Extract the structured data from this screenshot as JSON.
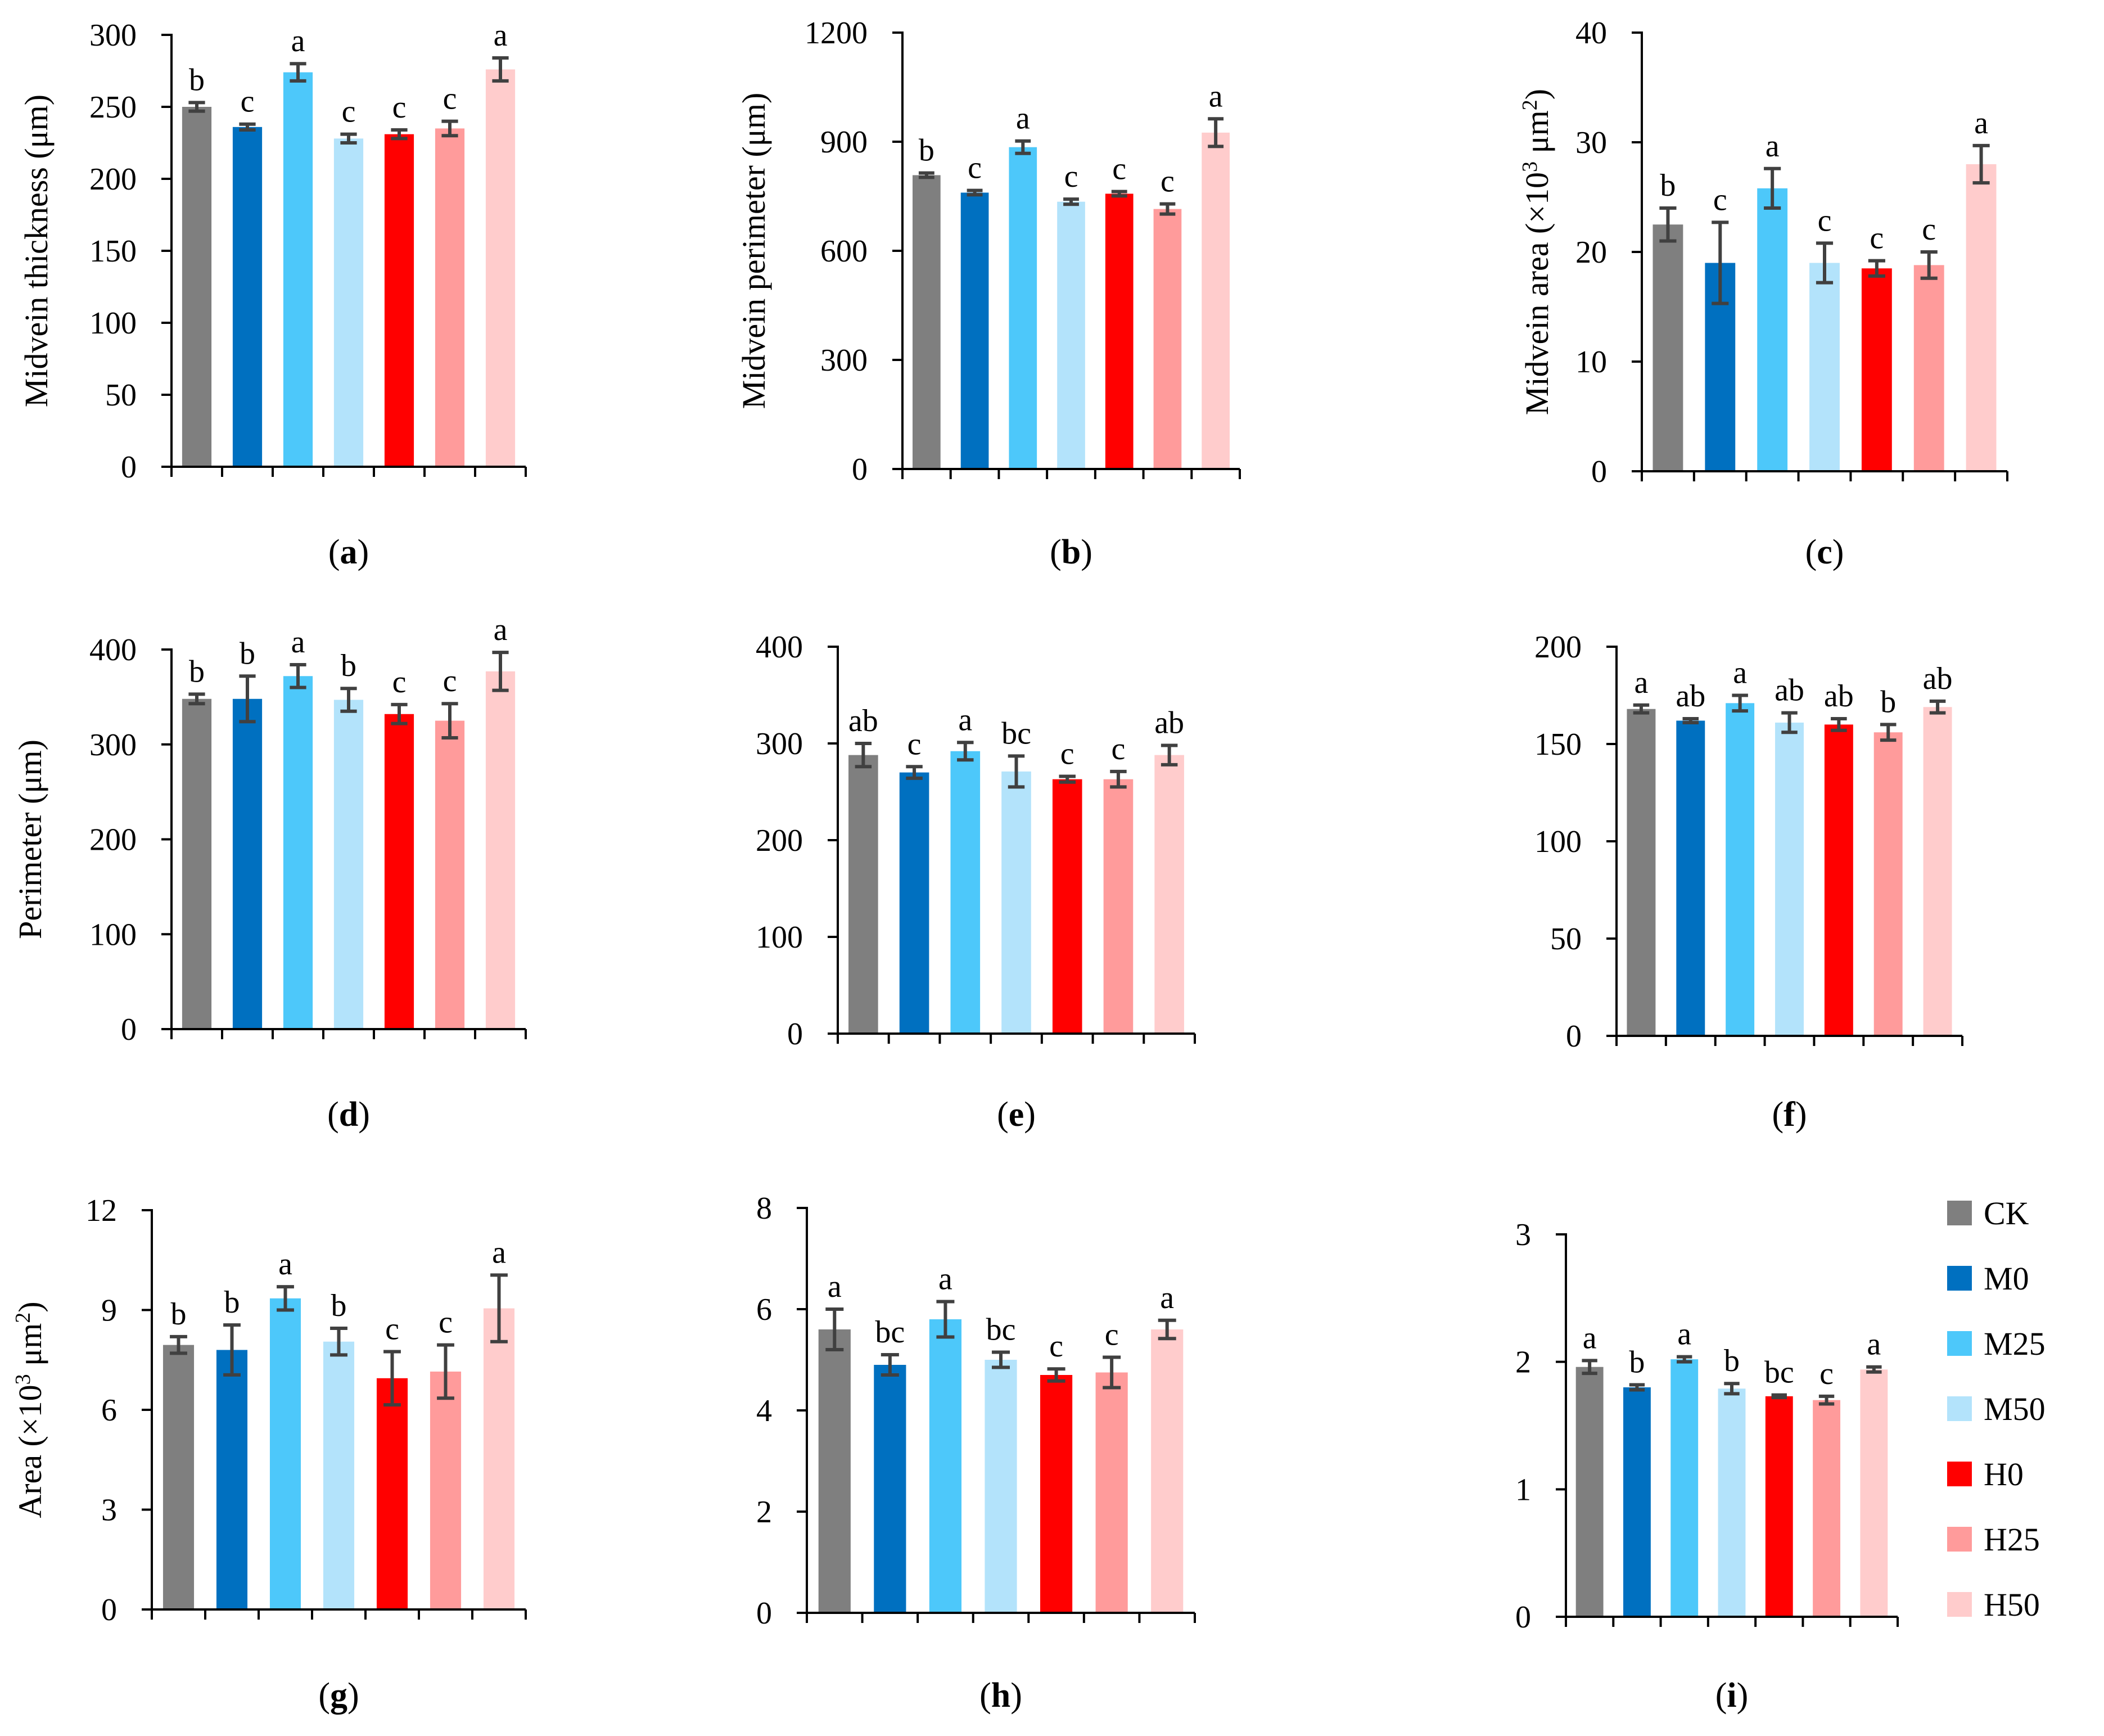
{
  "colors": {
    "CK": "#7f7f7f",
    "M0": "#0070c0",
    "M25": "#4dc8fa",
    "M50": "#b3e3fb",
    "H0": "#ff0000",
    "H25": "#ff9b9b",
    "H50": "#ffcccc",
    "axis": "#000000",
    "error_bar": "#404040"
  },
  "legend": {
    "entries": [
      "CK",
      "M0",
      "M25",
      "M50",
      "H0",
      "H25",
      "H50"
    ]
  },
  "chart_data": [
    {
      "id": "a",
      "panel_label": "a",
      "type": "bar",
      "ylabel": "Midvein thickness (μm)",
      "ylim": [
        0,
        300
      ],
      "yticks": [
        0,
        50,
        100,
        150,
        200,
        250,
        300
      ],
      "categories": [
        "CK",
        "M0",
        "M25",
        "M50",
        "H0",
        "H25",
        "H50"
      ],
      "values": [
        250,
        236,
        274,
        228,
        231,
        235,
        276
      ],
      "errors": [
        3,
        2,
        6,
        3,
        3,
        5,
        8
      ],
      "letters": [
        "b",
        "c",
        "a",
        "c",
        "c",
        "c",
        "a"
      ]
    },
    {
      "id": "b",
      "panel_label": "b",
      "type": "bar",
      "ylabel": "Midvein perimeter (μm)",
      "ylim": [
        0,
        1200
      ],
      "yticks": [
        0,
        300,
        600,
        900,
        1200
      ],
      "categories": [
        "CK",
        "M0",
        "M25",
        "M50",
        "H0",
        "H25",
        "H50"
      ],
      "values": [
        808,
        760,
        885,
        735,
        757,
        715,
        925
      ],
      "errors": [
        6,
        6,
        17,
        7,
        6,
        14,
        38
      ],
      "letters": [
        "b",
        "c",
        "a",
        "c",
        "c",
        "c",
        "a"
      ]
    },
    {
      "id": "c",
      "panel_label": "c",
      "type": "bar",
      "ylabel_parts": [
        "Midvein area (×10",
        "3",
        " μm",
        "2",
        ")"
      ],
      "ylim": [
        0,
        40
      ],
      "yticks": [
        0,
        10,
        20,
        30,
        40
      ],
      "categories": [
        "CK",
        "M0",
        "M25",
        "M50",
        "H0",
        "H25",
        "H50"
      ],
      "values": [
        22.5,
        19.0,
        25.8,
        19.0,
        18.5,
        18.8,
        28.0
      ],
      "errors": [
        1.5,
        3.7,
        1.8,
        1.8,
        0.7,
        1.2,
        1.7
      ],
      "letters": [
        "b",
        "c",
        "a",
        "c",
        "c",
        "c",
        "a"
      ]
    },
    {
      "id": "d",
      "panel_label": "d",
      "type": "bar",
      "ylabel": "Perimeter (μm)",
      "ylim": [
        0,
        400
      ],
      "yticks": [
        0,
        100,
        200,
        300,
        400
      ],
      "categories": [
        "CK",
        "M0",
        "M25",
        "M50",
        "H0",
        "H25",
        "H50"
      ],
      "values": [
        348,
        348,
        372,
        347,
        332,
        325,
        377
      ],
      "errors": [
        5,
        24,
        12,
        12,
        10,
        18,
        20
      ],
      "letters": [
        "b",
        "b",
        "a",
        "b",
        "c",
        "c",
        "a"
      ]
    },
    {
      "id": "e",
      "panel_label": "e",
      "type": "bar",
      "ylabel": "",
      "ylim": [
        0,
        400
      ],
      "yticks": [
        0,
        100,
        200,
        300,
        400
      ],
      "categories": [
        "CK",
        "M0",
        "M25",
        "M50",
        "H0",
        "H25",
        "H50"
      ],
      "values": [
        288,
        270,
        292,
        271,
        263,
        263,
        288
      ],
      "errors": [
        12,
        6,
        9,
        16,
        3,
        8,
        10
      ],
      "letters": [
        "ab",
        "c",
        "a",
        "bc",
        "c",
        "c",
        "ab"
      ]
    },
    {
      "id": "f",
      "panel_label": "f",
      "type": "bar",
      "ylabel": "",
      "ylim": [
        0,
        200
      ],
      "yticks": [
        0,
        50,
        100,
        150,
        200
      ],
      "categories": [
        "CK",
        "M0",
        "M25",
        "M50",
        "H0",
        "H25",
        "H50"
      ],
      "values": [
        168,
        162,
        171,
        161,
        160,
        156,
        169
      ],
      "errors": [
        2,
        1,
        4,
        5,
        3,
        4,
        3
      ],
      "letters": [
        "a",
        "ab",
        "a",
        "ab",
        "ab",
        "b",
        "ab"
      ]
    },
    {
      "id": "g",
      "panel_label": "g",
      "type": "bar",
      "ylabel_parts": [
        "Area (×10",
        "3",
        " μm",
        "2",
        ")"
      ],
      "ylim": [
        0,
        12
      ],
      "yticks": [
        0,
        3,
        6,
        9,
        12
      ],
      "categories": [
        "CK",
        "M0",
        "M25",
        "M50",
        "H0",
        "H25",
        "H50"
      ],
      "values": [
        7.95,
        7.8,
        9.35,
        8.05,
        6.95,
        7.15,
        9.05
      ],
      "errors": [
        0.25,
        0.75,
        0.35,
        0.4,
        0.8,
        0.8,
        1.0
      ],
      "letters": [
        "b",
        "b",
        "a",
        "b",
        "c",
        "c",
        "a"
      ]
    },
    {
      "id": "h",
      "panel_label": "h",
      "type": "bar",
      "ylabel": "",
      "ylim": [
        0,
        8
      ],
      "yticks": [
        0,
        2,
        4,
        6,
        8
      ],
      "categories": [
        "CK",
        "M0",
        "M25",
        "M50",
        "H0",
        "H25",
        "H50"
      ],
      "values": [
        5.6,
        4.9,
        5.8,
        5.0,
        4.7,
        4.75,
        5.6
      ],
      "errors": [
        0.4,
        0.2,
        0.35,
        0.15,
        0.12,
        0.3,
        0.18
      ],
      "letters": [
        "a",
        "bc",
        "a",
        "bc",
        "c",
        "c",
        "a"
      ]
    },
    {
      "id": "i",
      "panel_label": "i",
      "type": "bar",
      "ylabel": "",
      "ylim": [
        0,
        3
      ],
      "yticks": [
        0,
        1,
        2,
        3
      ],
      "categories": [
        "CK",
        "M0",
        "M25",
        "M50",
        "H0",
        "H25",
        "H50"
      ],
      "values": [
        1.96,
        1.8,
        2.02,
        1.79,
        1.73,
        1.7,
        1.94
      ],
      "errors": [
        0.05,
        0.02,
        0.02,
        0.04,
        0.01,
        0.03,
        0.02
      ],
      "letters": [
        "a",
        "b",
        "a",
        "b",
        "bc",
        "c",
        "a"
      ]
    }
  ]
}
